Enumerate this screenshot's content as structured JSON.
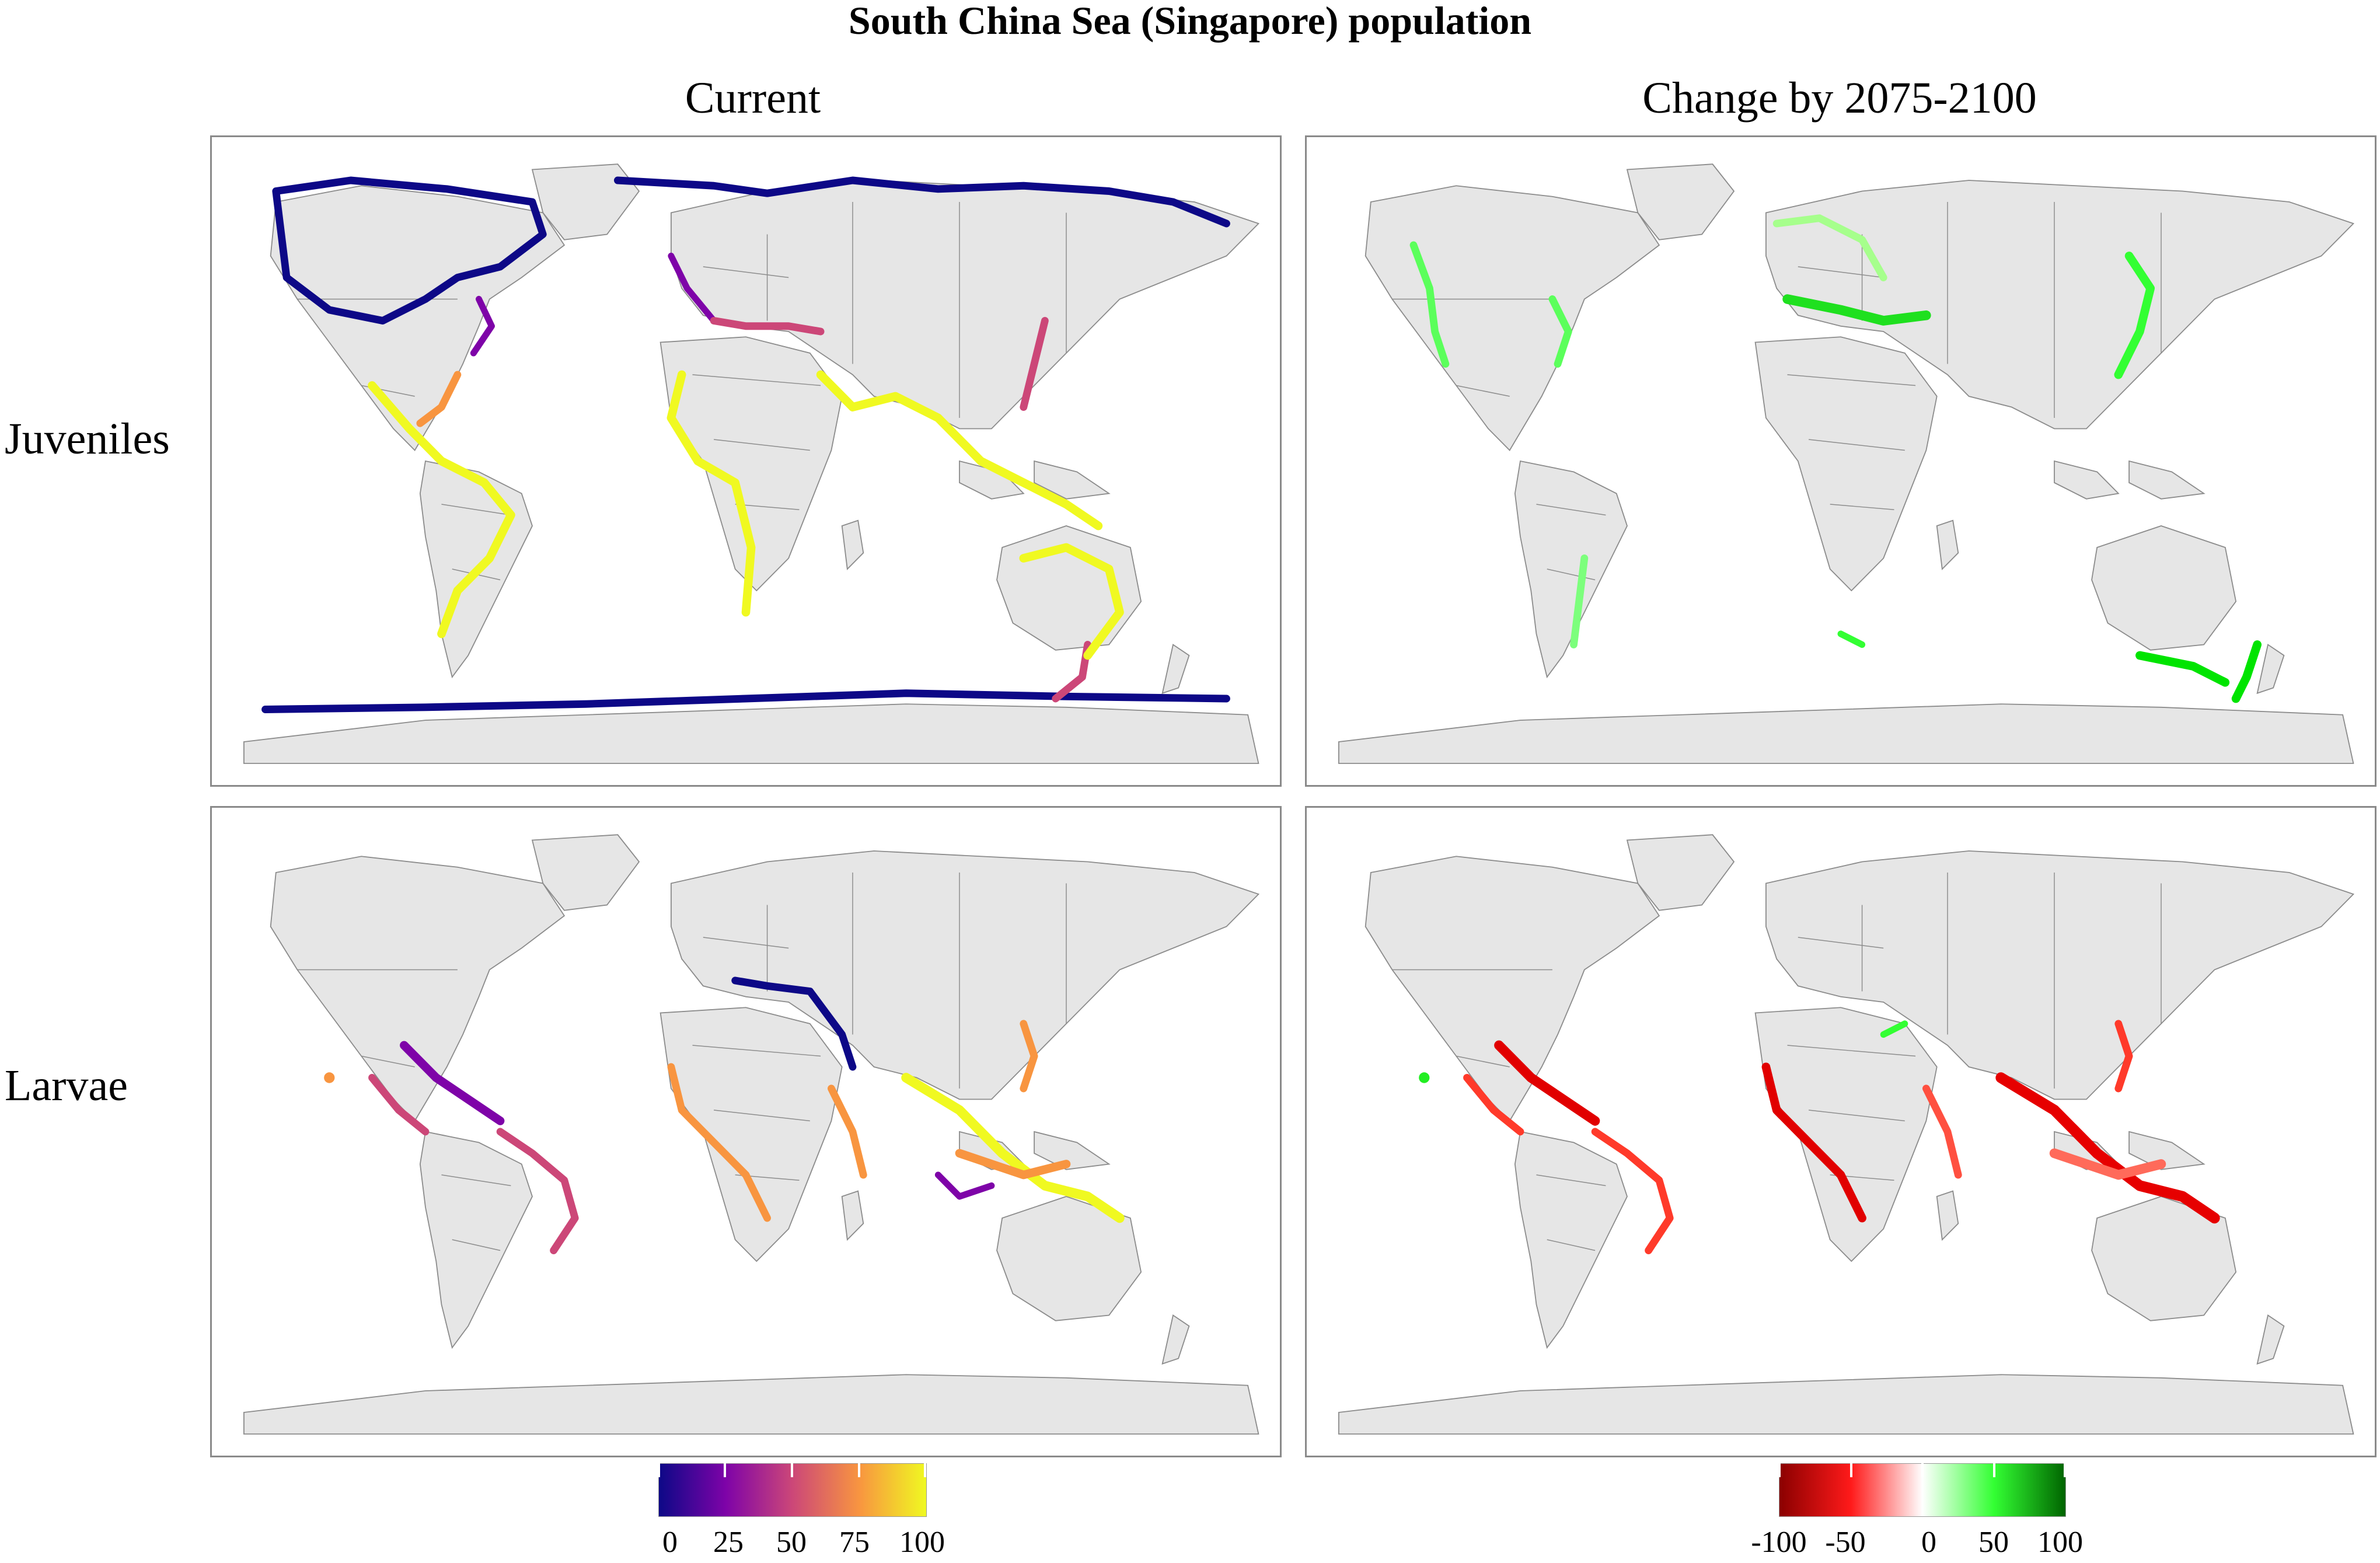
{
  "figure": {
    "title": "South China Sea (Singapore) population",
    "columns": [
      "Current",
      "Change by 2075-2100"
    ],
    "rows": [
      "Juveniles",
      "Larvae"
    ]
  },
  "legends": {
    "current": {
      "ticks": [
        "0",
        "25",
        "50",
        "75",
        "100"
      ],
      "colors": [
        "#0d0887",
        "#7e03a8",
        "#cc4778",
        "#f89540",
        "#f0f921"
      ]
    },
    "change": {
      "ticks": [
        "-100",
        "-50",
        "0",
        "50",
        "100"
      ],
      "colors": [
        "#8b0000",
        "#ff1a1a",
        "#ffffff",
        "#33ff33",
        "#006400"
      ]
    }
  },
  "colors": {
    "land": "#e6e6e6",
    "border": "#8c8c8c",
    "panel_border": "#8a8a8a"
  }
}
